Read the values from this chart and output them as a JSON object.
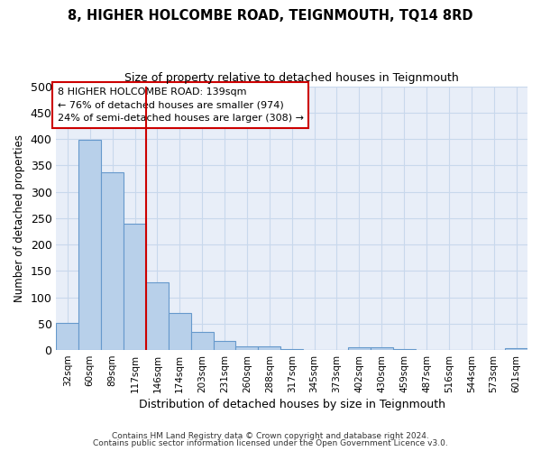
{
  "title": "8, HIGHER HOLCOMBE ROAD, TEIGNMOUTH, TQ14 8RD",
  "subtitle": "Size of property relative to detached houses in Teignmouth",
  "xlabel": "Distribution of detached houses by size in Teignmouth",
  "ylabel": "Number of detached properties",
  "categories": [
    "32sqm",
    "60sqm",
    "89sqm",
    "117sqm",
    "146sqm",
    "174sqm",
    "203sqm",
    "231sqm",
    "260sqm",
    "288sqm",
    "317sqm",
    "345sqm",
    "373sqm",
    "402sqm",
    "430sqm",
    "459sqm",
    "487sqm",
    "516sqm",
    "544sqm",
    "573sqm",
    "601sqm"
  ],
  "values": [
    52,
    398,
    337,
    240,
    128,
    70,
    34,
    18,
    7,
    7,
    1,
    0,
    0,
    6,
    5,
    1,
    0,
    0,
    0,
    0,
    3
  ],
  "bar_color": "#b8d0ea",
  "bar_edge_color": "#6699cc",
  "vline_color": "#cc0000",
  "annotation_text": "8 HIGHER HOLCOMBE ROAD: 139sqm\n← 76% of detached houses are smaller (974)\n24% of semi-detached houses are larger (308) →",
  "annotation_box_color": "#ffffff",
  "annotation_box_edge": "#cc0000",
  "ylim": [
    0,
    500
  ],
  "yticks": [
    0,
    50,
    100,
    150,
    200,
    250,
    300,
    350,
    400,
    450,
    500
  ],
  "footer1": "Contains HM Land Registry data © Crown copyright and database right 2024.",
  "footer2": "Contains public sector information licensed under the Open Government Licence v3.0.",
  "grid_color": "#c8d8ec",
  "bg_color": "#e8eef8"
}
